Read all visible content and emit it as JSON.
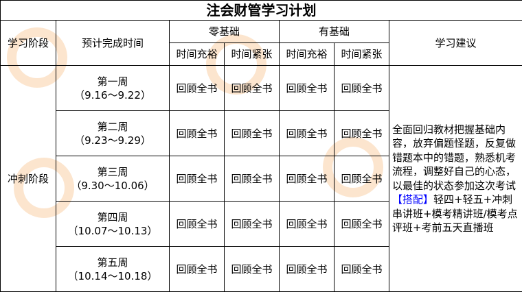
{
  "title": "注会财管学习计划",
  "headers": {
    "stage": "学习阶段",
    "time": "预计完成时间",
    "zero_basis": "零基础",
    "with_basis": "有基础",
    "advice": "学习建议",
    "sub": [
      "时间充裕",
      "时间紧张",
      "时间充裕",
      "时间紧张"
    ]
  },
  "stage": "冲刺阶段",
  "rows": [
    {
      "week": "第一周",
      "range": "（9.16～9.22）",
      "cells": [
        "回顾全书",
        "回顾全书",
        "回顾全书",
        "回顾全书"
      ]
    },
    {
      "week": "第二周",
      "range": "（9.23～9.29）",
      "cells": [
        "回顾全书",
        "回顾全书",
        "回顾全书",
        "回顾全书"
      ]
    },
    {
      "week": "第三周",
      "range": "（9.30～10.06）",
      "cells": [
        "回顾全书",
        "回顾全书",
        "回顾全书",
        "回顾全书"
      ]
    },
    {
      "week": "第四周",
      "range": "（10.07～10.13）",
      "cells": [
        "回顾全书",
        "回顾全书",
        "回顾全书",
        "回顾全书"
      ]
    },
    {
      "week": "第五周",
      "range": "（10.14～10.18）",
      "cells": [
        "回顾全书",
        "回顾全书",
        "回顾全书",
        "回顾全书"
      ]
    }
  ],
  "advice": {
    "text": "全面回归教材把握基础内容，放弃偏题怪题，反复做错题本中的错题，熟悉机考流程，调整好自己的心态，以最佳的状态参加这次考试",
    "tag": "【搭配】",
    "combo": "轻四+轻五+冲刺串讲班+模考精讲班/模考点评班+考前五天直播班"
  },
  "colors": {
    "accent": "#0000ff",
    "watermark": "#f5963c"
  }
}
